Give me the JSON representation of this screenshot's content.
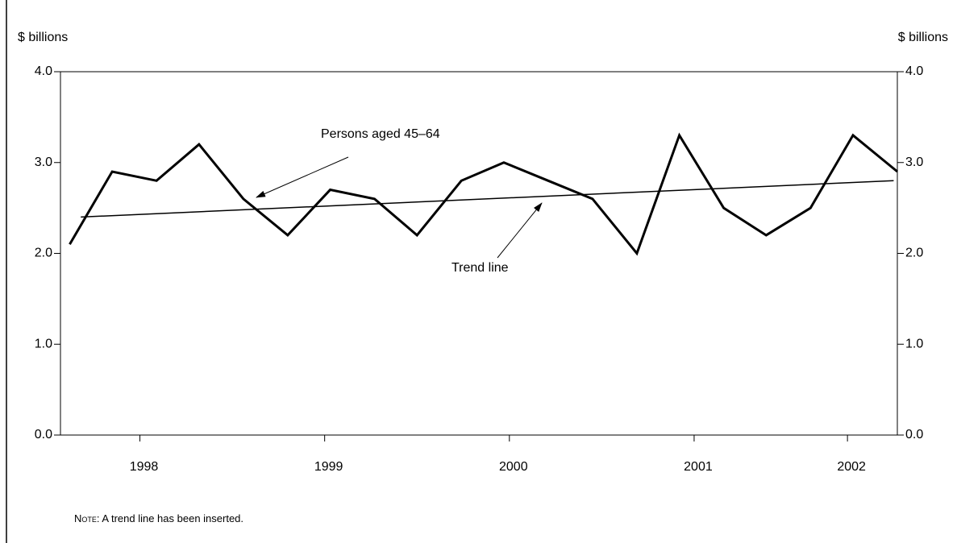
{
  "chart_data": {
    "type": "line",
    "ylabel": "$ billions",
    "y2label": "$ billions",
    "x": [
      1997.62,
      1997.85,
      1998.09,
      1998.32,
      1998.56,
      1998.8,
      1999.03,
      1999.27,
      1999.5,
      1999.74,
      1999.97,
      2000.21,
      2000.45,
      2000.69,
      2000.92,
      2001.16,
      2001.39,
      2001.63,
      2001.86,
      2002.1
    ],
    "series": [
      {
        "name": "Persons aged 45–64",
        "color": "#000000",
        "values": [
          2.1,
          2.9,
          2.8,
          3.2,
          2.6,
          2.2,
          2.7,
          2.6,
          2.2,
          2.8,
          3.0,
          2.8,
          2.6,
          2.0,
          3.3,
          2.5,
          2.2,
          2.5,
          3.3,
          2.9
        ]
      },
      {
        "name": "Trend line",
        "color": "#000000",
        "x": [
          1997.68,
          2002.08
        ],
        "values": [
          2.4,
          2.8
        ]
      }
    ],
    "xlim": [
      1997.57,
      2002.1
    ],
    "xticks": [
      1998,
      1999,
      2000,
      2001,
      {
        "value": 2001.83,
        "label": "2002"
      }
    ],
    "ylim": [
      0,
      4
    ],
    "yticks": [
      {
        "value": 0,
        "label": "0.0"
      },
      {
        "value": 1,
        "label": "1.0"
      },
      {
        "value": 2,
        "label": "2.0"
      },
      {
        "value": 3,
        "label": "3.0"
      },
      {
        "value": 4,
        "label": "4.0"
      }
    ],
    "y2lim": [
      0,
      4
    ],
    "y2ticks": [
      {
        "value": 0,
        "label": "0.0"
      },
      {
        "value": 1,
        "label": "1.0"
      },
      {
        "value": 2,
        "label": "2.0"
      },
      {
        "value": 3,
        "label": "3.0"
      },
      {
        "value": 4,
        "label": "4.0"
      }
    ],
    "note_label": "Note",
    "note": ": A trend line has been inserted."
  }
}
